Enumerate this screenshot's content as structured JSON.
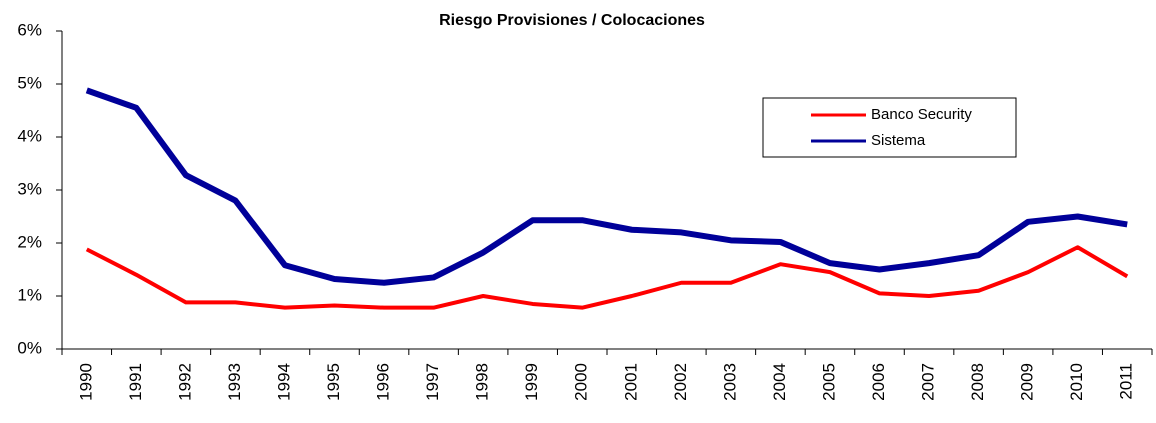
{
  "chart_data": {
    "type": "line",
    "title": "Riesgo Provisiones / Colocaciones",
    "categories": [
      "1990",
      "1991",
      "1992",
      "1993",
      "1994",
      "1995",
      "1996",
      "1997",
      "1998",
      "1999",
      "2000",
      "2001",
      "2002",
      "2003",
      "2004",
      "2005",
      "2006",
      "2007",
      "2008",
      "2009",
      "2010",
      "2011"
    ],
    "series": [
      {
        "name": "Banco Security",
        "color": "#ff0000",
        "values": [
          1.88,
          1.4,
          0.88,
          0.88,
          0.78,
          0.82,
          0.78,
          0.78,
          1.0,
          0.85,
          0.78,
          1.0,
          1.25,
          1.25,
          1.6,
          1.45,
          1.05,
          1.0,
          1.1,
          1.45,
          1.92,
          1.37
        ]
      },
      {
        "name": "Sistema",
        "color": "#000099",
        "values": [
          4.88,
          4.55,
          3.28,
          2.8,
          1.58,
          1.32,
          1.25,
          1.35,
          1.82,
          2.43,
          2.43,
          2.25,
          2.2,
          2.05,
          2.02,
          1.62,
          1.5,
          1.62,
          1.77,
          2.4,
          2.5,
          2.35
        ]
      }
    ],
    "ylim": [
      0,
      6
    ],
    "yticks": [
      {
        "value": 0,
        "label": "0%"
      },
      {
        "value": 1,
        "label": "1%"
      },
      {
        "value": 2,
        "label": "2%"
      },
      {
        "value": 3,
        "label": "3%"
      },
      {
        "value": 4,
        "label": "4%"
      },
      {
        "value": 5,
        "label": "5%"
      },
      {
        "value": 6,
        "label": "6%"
      }
    ],
    "grid": false,
    "legend": "upper right"
  }
}
